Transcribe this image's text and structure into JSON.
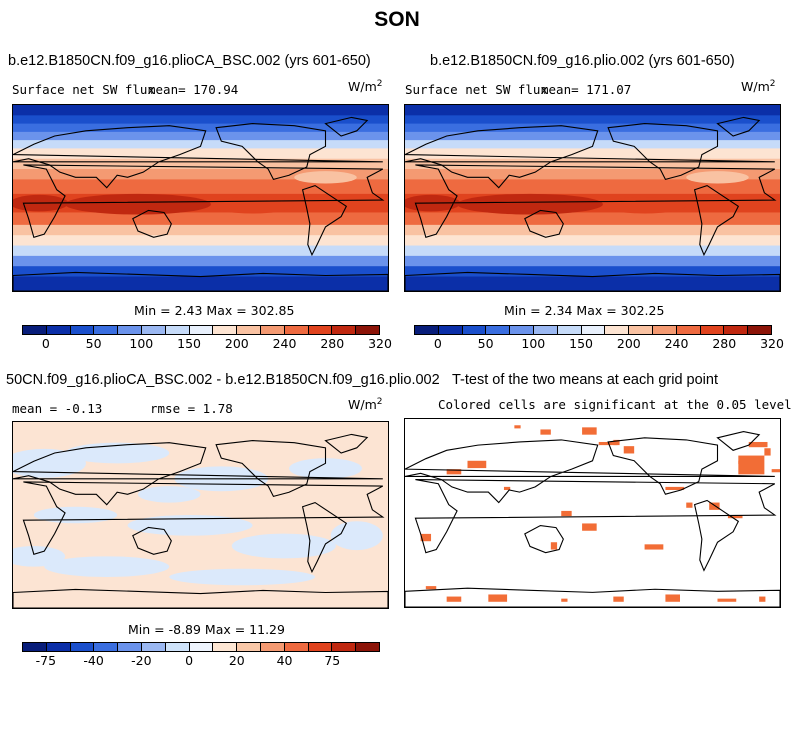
{
  "title": "SON",
  "panels": {
    "top_left": {
      "case": "b.e12.B1850CN.f09_g16.plioCA_BSC.002 (yrs 601-650)",
      "left_label": "Surface net SW flux",
      "mean_label": "mean= 170.94",
      "units": "W/m",
      "units_sup": "2",
      "stats": "Min =    2.43 Max = 302.85",
      "map": "surface-net-sw-flux"
    },
    "top_right": {
      "case": "b.e12.B1850CN.f09_g16.plio.002 (yrs 601-650)",
      "left_label": "Surface net SW flux",
      "mean_label": "mean= 171.07",
      "units": "W/m",
      "units_sup": "2",
      "stats": "Min =    2.34 Max = 302.25",
      "map": "surface-net-sw-flux"
    },
    "bottom_left": {
      "case": "50CN.f09_g16.plioCA_BSC.002 - b.e12.B1850CN.f09_g16.plio.002",
      "mean_label": "mean =  -0.13",
      "rmse_label": "rmse =   1.78",
      "units": "W/m",
      "units_sup": "2",
      "stats": "Min =  -8.89 Max =  11.29",
      "map": "difference"
    },
    "bottom_right": {
      "title": "T-test of the two means at each grid point",
      "subtitle": "Colored cells are significant at the 0.05 level",
      "map": "significance"
    }
  },
  "colorbars": {
    "flux": {
      "colors": [
        "#081d7a",
        "#0b2fa8",
        "#1a4fcc",
        "#3a6ee0",
        "#6b93ec",
        "#9bb8f2",
        "#c6dbf9",
        "#e8f0fc",
        "#fde4d2",
        "#f9c2a2",
        "#f49a72",
        "#ee6a40",
        "#e0431e",
        "#c02810",
        "#8c1408"
      ],
      "labels": [
        "0",
        "50",
        "100",
        "150",
        "200",
        "240",
        "280",
        "320"
      ]
    },
    "diff": {
      "colors": [
        "#081d7a",
        "#0b2fa8",
        "#1a4fcc",
        "#3a6ee0",
        "#6b93ec",
        "#9bb8f2",
        "#cfe3fa",
        "#eef4fd",
        "#fde6d3",
        "#f9c8a8",
        "#f49a72",
        "#ee6a40",
        "#e0431e",
        "#c02810",
        "#8c1408"
      ],
      "labels": [
        "-75",
        "-40",
        "-20",
        "0",
        "20",
        "40",
        "75"
      ]
    }
  },
  "colors": {
    "sig_orange": "#f26d36",
    "diff_blue": "#dbe9fb",
    "diff_peach": "#fce4d3"
  }
}
